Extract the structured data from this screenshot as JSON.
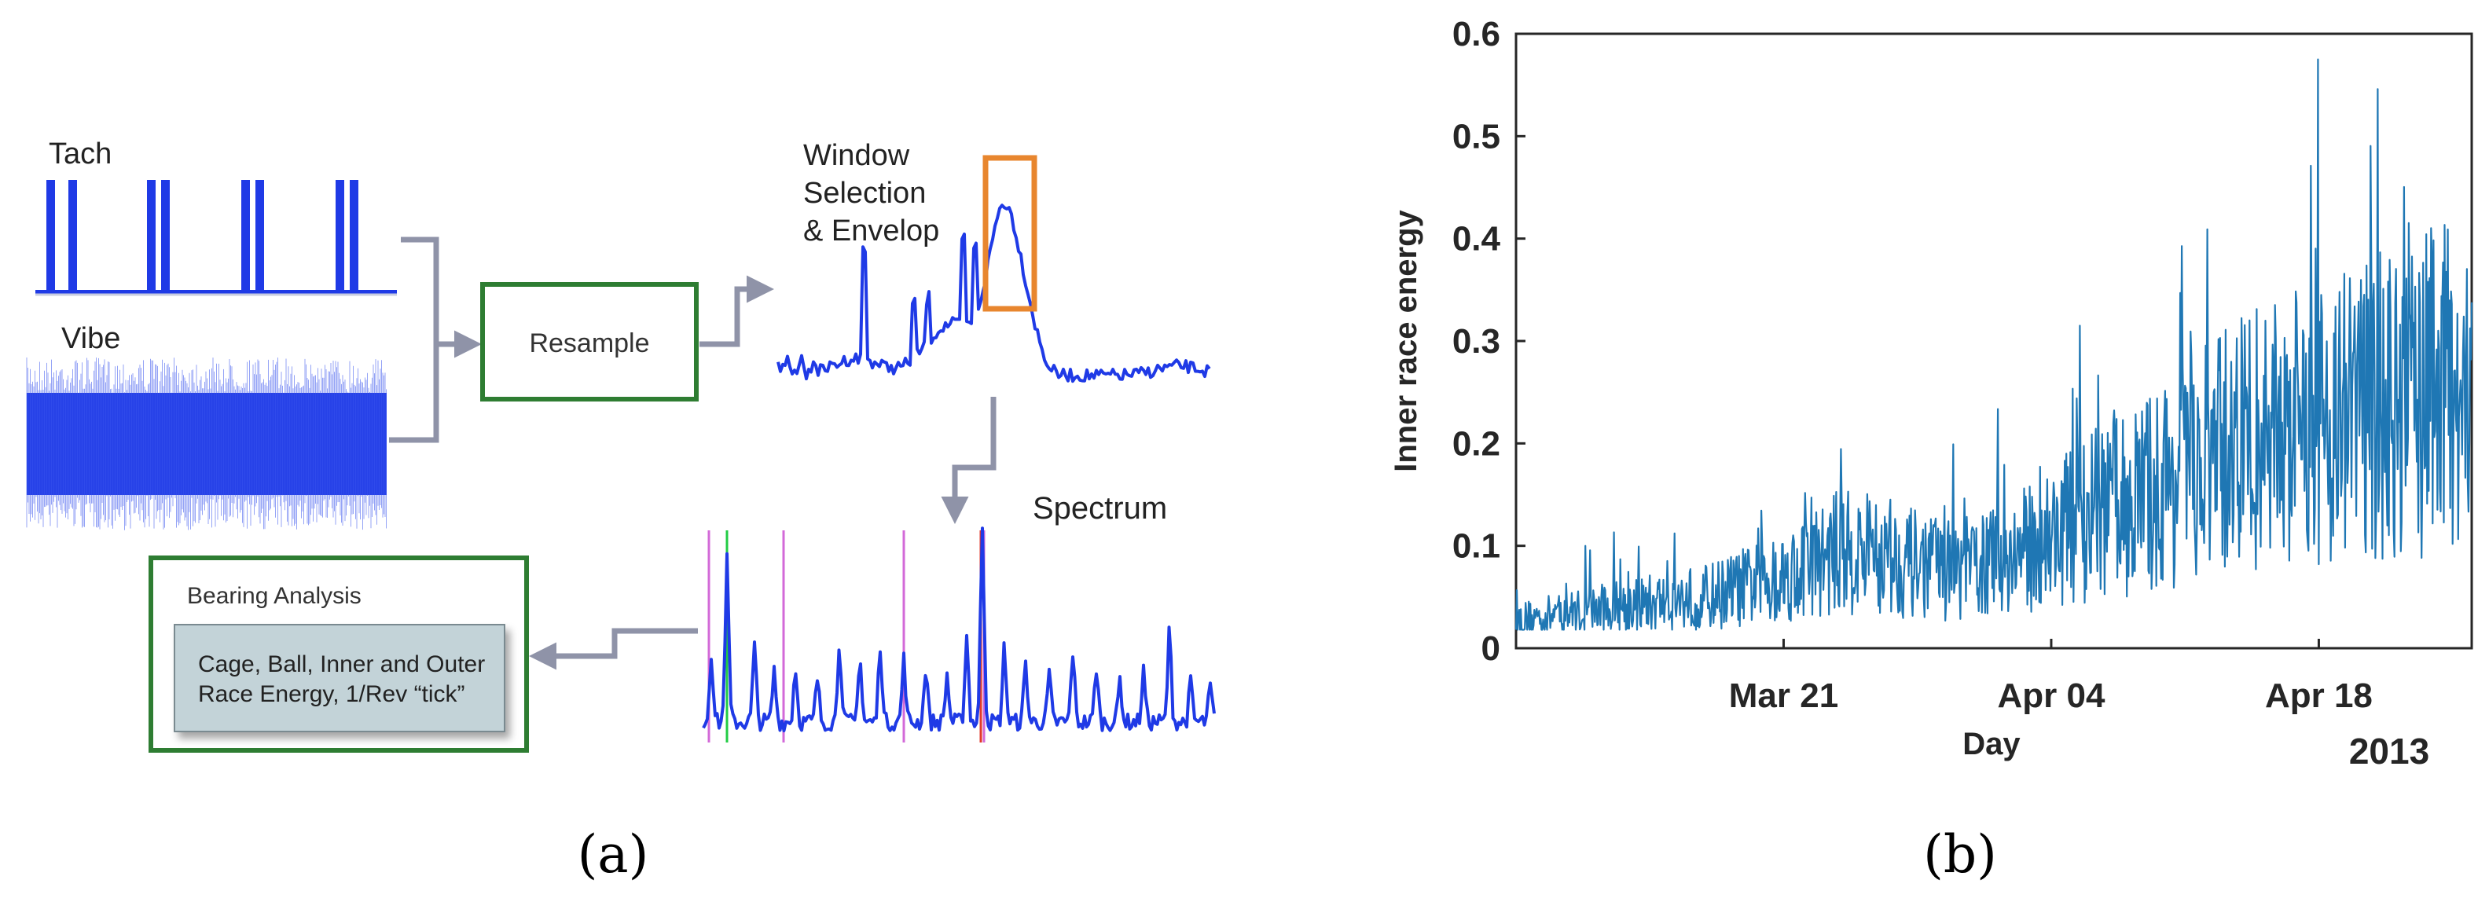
{
  "panel_a": {
    "caption": "(a)",
    "tach_label": "Tach",
    "vibe_label": "Vibe",
    "resample_label": "Resample",
    "window_label_1": "Window",
    "window_label_2": "Selection",
    "window_label_3": "& Envelop",
    "spectrum_label": "Spectrum",
    "bearing_title": "Bearing Analysis",
    "bearing_line_1": "Cage, Ball, Inner and Outer",
    "bearing_line_2": "Race Energy, 1/Rev “tick”",
    "colors": {
      "signal": "#1f3ae6",
      "green_box": "#2e7d32",
      "orange_box": "#e8862e",
      "arrow": "#8f93a8",
      "bearing_fill": "#c3d3d8",
      "spectrum_violet": "#d36ad8",
      "spectrum_green": "#22cc44",
      "spectrum_red": "#e23a2a"
    }
  },
  "panel_b": {
    "caption": "(b)",
    "chart_data": {
      "type": "line",
      "xlabel": "Day",
      "ylabel": "Inner race energy",
      "x_ticks": [
        "Mar 21",
        "Apr 04",
        "Apr 18"
      ],
      "x_secondary_label": "2013",
      "y_ticks": [
        "0",
        "0.1",
        "0.2",
        "0.3",
        "0.4",
        "0.5",
        "0.6"
      ],
      "ylim": [
        0,
        0.6
      ],
      "grid": false,
      "series_color": "#1f77b4",
      "trend": {
        "x_days_from_start": [
          0,
          5,
          10,
          14,
          17,
          20,
          23,
          26,
          29,
          33,
          38,
          44,
          50
        ],
        "y": [
          0.027,
          0.04,
          0.05,
          0.07,
          0.095,
          0.085,
          0.075,
          0.09,
          0.12,
          0.15,
          0.2,
          0.23,
          0.26
        ]
      }
    }
  }
}
